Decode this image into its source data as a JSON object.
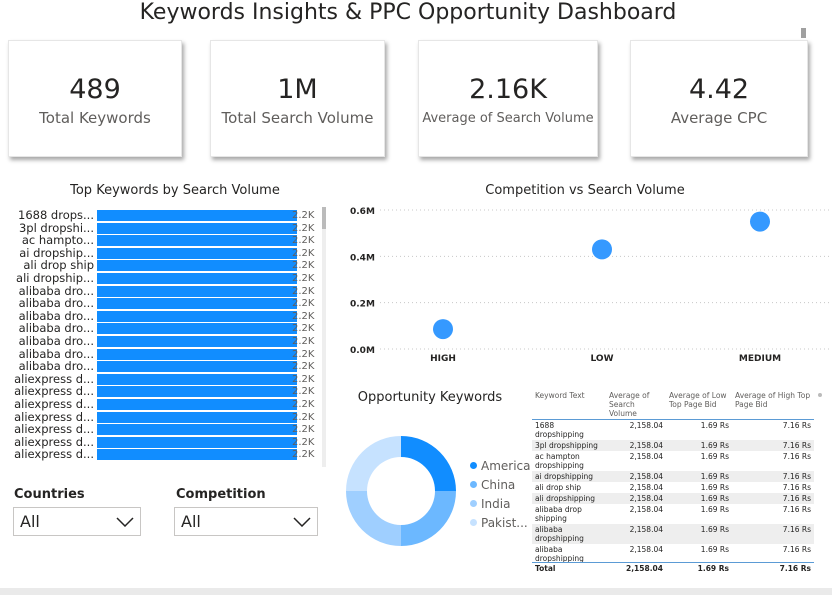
{
  "title": "Keywords Insights & PPC Opportunity Dashboard",
  "cards": [
    {
      "value": "489",
      "label": "Total Keywords"
    },
    {
      "value": "1M",
      "label": "Total Search Volume"
    },
    {
      "value": "2.16K",
      "label": "Average of Search Volume"
    },
    {
      "value": "4.42",
      "label": "Average CPC"
    }
  ],
  "colors": {
    "accent": "#118dff",
    "china": "#6cb8ff",
    "india": "#9fcfff",
    "pakistan": "#c6e2ff"
  },
  "chart_data": [
    {
      "type": "bar",
      "title": "Top Keywords by Search Volume",
      "categories": [
        "1688 drops...",
        "3pl dropshi...",
        "ac hampto...",
        "ai dropship...",
        "ali drop ship",
        "ali dropship...",
        "alibaba dro...",
        "alibaba dro...",
        "alibaba dro...",
        "alibaba dro...",
        "alibaba dro...",
        "alibaba dro...",
        "alibaba dro...",
        "aliexpress d...",
        "aliexpress d...",
        "aliexpress d...",
        "aliexpress d...",
        "aliexpress d...",
        "aliexpress d...",
        "aliexpress d..."
      ],
      "values": [
        2158,
        2158,
        2158,
        2158,
        2158,
        2158,
        2158,
        2158,
        2158,
        2158,
        2158,
        2158,
        2158,
        2158,
        2158,
        2158,
        2158,
        2158,
        2158,
        2158
      ],
      "data_label": "2.2K"
    },
    {
      "type": "scatter",
      "title": "Competition vs Search Volume",
      "categories": [
        "HIGH",
        "LOW",
        "MEDIUM"
      ],
      "values": [
        0.086,
        0.43,
        0.55
      ],
      "unit": "M",
      "yticks": [
        "0.0M",
        "0.2M",
        "0.4M",
        "0.6M"
      ],
      "ylim": [
        0,
        0.6
      ]
    },
    {
      "type": "pie",
      "title": "Opportunity Keywords",
      "labels": [
        "America",
        "China",
        "India",
        "Pakist..."
      ],
      "values": [
        25,
        25,
        25,
        25
      ]
    }
  ],
  "slicers": [
    {
      "label": "Countries",
      "value": "All"
    },
    {
      "label": "Competition",
      "value": "All"
    }
  ],
  "table": {
    "headers": [
      "Keyword Text",
      "Average of Search Volume",
      "Average of Low Top Page Bid",
      "Average of High Top Page Bid"
    ],
    "rows": [
      [
        "1688 dropshipping",
        "2,158.04",
        "1.69 Rs",
        "7.16 Rs"
      ],
      [
        "3pl dropshipping",
        "2,158.04",
        "1.69 Rs",
        "7.16 Rs"
      ],
      [
        "ac hampton dropshipping",
        "2,158.04",
        "1.69 Rs",
        "7.16 Rs"
      ],
      [
        "ai dropshipping",
        "2,158.04",
        "1.69 Rs",
        "7.16 Rs"
      ],
      [
        "ali drop ship",
        "2,158.04",
        "1.69 Rs",
        "7.16 Rs"
      ],
      [
        "ali dropshipping",
        "2,158.04",
        "1.69 Rs",
        "7.16 Rs"
      ],
      [
        "alibaba drop shipping",
        "2,158.04",
        "1.69 Rs",
        "7.16 Rs"
      ],
      [
        "alibaba dropshipping",
        "2,158.04",
        "1.69 Rs",
        "7.16 Rs"
      ],
      [
        "alibaba dropshipping",
        "2,158.04",
        "1.69 Rs",
        "7.16 Rs"
      ]
    ],
    "total": [
      "Total",
      "2,158.04",
      "1.69 Rs",
      "7.16 Rs"
    ]
  }
}
